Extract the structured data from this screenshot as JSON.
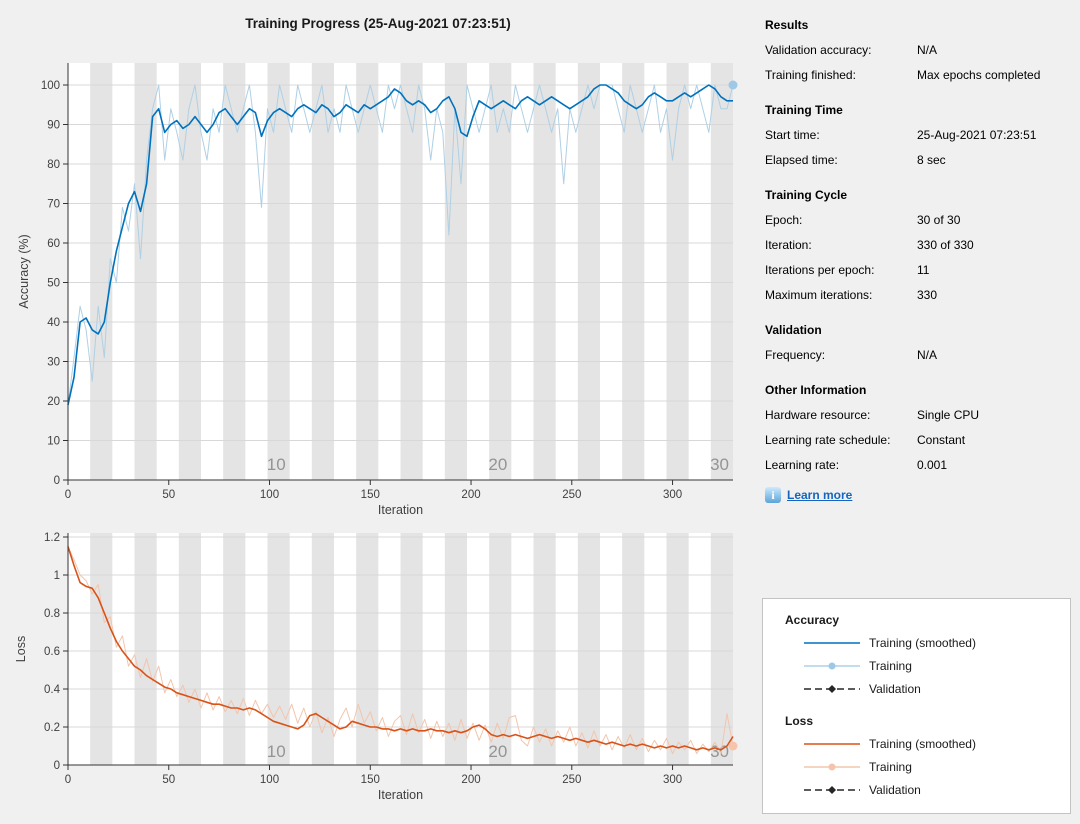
{
  "title": "Training Progress (25-Aug-2021 07:23:51)",
  "colors": {
    "window_bg": "#f0f0f0",
    "plot_bg": "#ffffff",
    "epoch_band": "#e4e4e4",
    "gridline": "#d8d8d8",
    "axis": "#333333",
    "tick_label": "#404040",
    "epoch_label": "#949494",
    "accuracy_smoothed": "#0072bd",
    "accuracy_raw": "#afd0e5",
    "accuracy_marker": "#9ec9e6",
    "loss_smoothed": "#d95319",
    "loss_raw": "#f2c5ad",
    "loss_marker": "#f5c5ab",
    "validation": "#262626",
    "link": "#1565c0"
  },
  "chart_data": [
    {
      "type": "line",
      "name": "accuracy",
      "xlabel": "Iteration",
      "ylabel": "Accuracy (%)",
      "xlim": [
        0,
        330
      ],
      "ylim": [
        0,
        100
      ],
      "xticks": [
        0,
        50,
        100,
        150,
        200,
        250,
        300
      ],
      "yticks": [
        0,
        10,
        20,
        30,
        40,
        50,
        60,
        70,
        80,
        90,
        100
      ],
      "grid": "horizontal",
      "epoch_bands": {
        "epochs": 30,
        "iterations_per_epoch": 11
      },
      "epoch_labels": [
        {
          "label": "10",
          "iteration": 110
        },
        {
          "label": "20",
          "iteration": 220
        },
        {
          "label": "30",
          "iteration": 330
        }
      ],
      "x_step": 3,
      "series": [
        {
          "name": "Training",
          "color_key": "accuracy_raw",
          "width": 1,
          "values": [
            19,
            31,
            44,
            38,
            25,
            44,
            31,
            56,
            50,
            69,
            63,
            75,
            56,
            81,
            94,
            100,
            81,
            94,
            88,
            81,
            94,
            100,
            88,
            81,
            94,
            88,
            100,
            94,
            88,
            94,
            100,
            88,
            69,
            94,
            88,
            100,
            94,
            88,
            100,
            94,
            88,
            94,
            100,
            88,
            94,
            88,
            100,
            94,
            88,
            94,
            100,
            94,
            88,
            100,
            94,
            100,
            94,
            88,
            100,
            94,
            81,
            94,
            88,
            62,
            94,
            75,
            100,
            94,
            88,
            94,
            100,
            88,
            94,
            88,
            100,
            94,
            88,
            94,
            100,
            94,
            88,
            94,
            75,
            94,
            88,
            94,
            100,
            94,
            100,
            100,
            100,
            94,
            88,
            100,
            94,
            88,
            94,
            100,
            88,
            94,
            81,
            94,
            100,
            94,
            100,
            94,
            88,
            100,
            94,
            94,
            100
          ]
        },
        {
          "name": "Training (smoothed)",
          "color_key": "accuracy_smoothed",
          "width": 1.6,
          "values": [
            19,
            26,
            40,
            41,
            38,
            37,
            40,
            50,
            58,
            64,
            70,
            73,
            68,
            75,
            92,
            94,
            88,
            90,
            91,
            89,
            90,
            92,
            90,
            88,
            90,
            93,
            94,
            92,
            90,
            92,
            94,
            93,
            87,
            91,
            93,
            94,
            93,
            92,
            94,
            95,
            94,
            93,
            95,
            94,
            92,
            93,
            95,
            94,
            93,
            95,
            94,
            95,
            96,
            97,
            99,
            98,
            96,
            95,
            96,
            95,
            93,
            94,
            96,
            97,
            94,
            88,
            87,
            92,
            96,
            95,
            94,
            95,
            96,
            95,
            94,
            96,
            97,
            96,
            95,
            96,
            97,
            96,
            95,
            94,
            95,
            96,
            97,
            99,
            100,
            100,
            99,
            98,
            96,
            95,
            94,
            95,
            97,
            98,
            97,
            96,
            96,
            97,
            98,
            97,
            98,
            99,
            100,
            99,
            97,
            96,
            96
          ]
        },
        {
          "name": "Validation",
          "color_key": "validation",
          "width": 1,
          "dashed": true,
          "values": []
        }
      ],
      "end_marker": {
        "x": 330,
        "y": 100,
        "color_key": "accuracy_marker"
      }
    },
    {
      "type": "line",
      "name": "loss",
      "xlabel": "Iteration",
      "ylabel": "Loss",
      "xlim": [
        0,
        330
      ],
      "ylim": [
        0,
        1.2
      ],
      "xticks": [
        0,
        50,
        100,
        150,
        200,
        250,
        300
      ],
      "yticks": [
        0,
        0.2,
        0.4,
        0.6,
        0.8,
        1,
        1.2
      ],
      "grid": "horizontal",
      "epoch_bands": {
        "epochs": 30,
        "iterations_per_epoch": 11
      },
      "epoch_labels": [
        {
          "label": "10",
          "iteration": 110
        },
        {
          "label": "20",
          "iteration": 220
        },
        {
          "label": "30",
          "iteration": 330
        }
      ],
      "x_step": 3,
      "series": [
        {
          "name": "Training",
          "color_key": "loss_raw",
          "width": 1,
          "values": [
            1.15,
            1.08,
            1.0,
            0.97,
            0.9,
            0.95,
            0.75,
            0.78,
            0.62,
            0.68,
            0.52,
            0.58,
            0.46,
            0.56,
            0.44,
            0.52,
            0.38,
            0.45,
            0.36,
            0.42,
            0.33,
            0.4,
            0.3,
            0.38,
            0.29,
            0.36,
            0.28,
            0.34,
            0.27,
            0.35,
            0.26,
            0.34,
            0.27,
            0.32,
            0.25,
            0.31,
            0.24,
            0.32,
            0.22,
            0.3,
            0.2,
            0.28,
            0.17,
            0.25,
            0.15,
            0.24,
            0.3,
            0.2,
            0.32,
            0.22,
            0.28,
            0.18,
            0.25,
            0.15,
            0.23,
            0.26,
            0.16,
            0.27,
            0.17,
            0.24,
            0.14,
            0.23,
            0.15,
            0.22,
            0.13,
            0.24,
            0.14,
            0.22,
            0.13,
            0.21,
            0.12,
            0.22,
            0.14,
            0.25,
            0.26,
            0.13,
            0.1,
            0.2,
            0.12,
            0.19,
            0.1,
            0.18,
            0.12,
            0.2,
            0.1,
            0.17,
            0.09,
            0.18,
            0.1,
            0.16,
            0.08,
            0.15,
            0.09,
            0.16,
            0.08,
            0.14,
            0.07,
            0.13,
            0.08,
            0.14,
            0.06,
            0.12,
            0.08,
            0.13,
            0.06,
            0.11,
            0.07,
            0.12,
            0.06,
            0.27,
            0.1
          ]
        },
        {
          "name": "Training (smoothed)",
          "color_key": "loss_smoothed",
          "width": 1.6,
          "values": [
            1.15,
            1.05,
            0.96,
            0.94,
            0.93,
            0.88,
            0.8,
            0.72,
            0.65,
            0.6,
            0.56,
            0.52,
            0.5,
            0.47,
            0.45,
            0.43,
            0.41,
            0.4,
            0.38,
            0.37,
            0.36,
            0.35,
            0.34,
            0.33,
            0.32,
            0.32,
            0.31,
            0.3,
            0.3,
            0.29,
            0.3,
            0.29,
            0.27,
            0.25,
            0.23,
            0.22,
            0.21,
            0.2,
            0.19,
            0.21,
            0.26,
            0.27,
            0.25,
            0.23,
            0.21,
            0.19,
            0.2,
            0.23,
            0.22,
            0.21,
            0.2,
            0.2,
            0.19,
            0.19,
            0.18,
            0.19,
            0.18,
            0.19,
            0.18,
            0.18,
            0.19,
            0.18,
            0.18,
            0.17,
            0.18,
            0.17,
            0.18,
            0.2,
            0.21,
            0.19,
            0.16,
            0.15,
            0.16,
            0.15,
            0.16,
            0.15,
            0.14,
            0.15,
            0.16,
            0.15,
            0.14,
            0.15,
            0.14,
            0.13,
            0.14,
            0.13,
            0.12,
            0.13,
            0.12,
            0.11,
            0.12,
            0.11,
            0.1,
            0.11,
            0.1,
            0.11,
            0.1,
            0.09,
            0.1,
            0.09,
            0.1,
            0.09,
            0.1,
            0.09,
            0.08,
            0.09,
            0.08,
            0.09,
            0.08,
            0.1,
            0.15
          ]
        },
        {
          "name": "Validation",
          "color_key": "validation",
          "width": 1,
          "dashed": true,
          "values": []
        }
      ],
      "end_marker": {
        "x": 330,
        "y": 0.1,
        "color_key": "loss_marker"
      }
    }
  ],
  "info_panel": {
    "sections": [
      {
        "title": "Results",
        "rows": [
          {
            "label": "Validation accuracy:",
            "value": "N/A"
          },
          {
            "label": "Training finished:",
            "value": "Max epochs completed"
          }
        ]
      },
      {
        "title": "Training Time",
        "rows": [
          {
            "label": "Start time:",
            "value": "25-Aug-2021 07:23:51"
          },
          {
            "label": "Elapsed time:",
            "value": "8 sec"
          }
        ]
      },
      {
        "title": "Training Cycle",
        "rows": [
          {
            "label": "Epoch:",
            "value": "30 of 30"
          },
          {
            "label": "Iteration:",
            "value": "330 of 330"
          },
          {
            "label": "Iterations per epoch:",
            "value": "11"
          },
          {
            "label": "Maximum iterations:",
            "value": "330"
          }
        ]
      },
      {
        "title": "Validation",
        "rows": [
          {
            "label": "Frequency:",
            "value": "N/A"
          }
        ]
      },
      {
        "title": "Other Information",
        "rows": [
          {
            "label": "Hardware resource:",
            "value": "Single CPU"
          },
          {
            "label": "Learning rate schedule:",
            "value": "Constant"
          },
          {
            "label": "Learning rate:",
            "value": "0.001"
          }
        ]
      }
    ],
    "learn_more": {
      "icon": "i",
      "label": "Learn more"
    }
  },
  "legend": {
    "groups": [
      {
        "title": "Accuracy",
        "entries": [
          {
            "label": "Training (smoothed)",
            "style": "solid",
            "color_key": "accuracy_smoothed"
          },
          {
            "label": "Training",
            "style": "solid-marker",
            "color_key": "accuracy_raw",
            "marker_key": "accuracy_marker"
          },
          {
            "label": "Validation",
            "style": "dashed-marker",
            "color_key": "validation",
            "marker_key": "validation"
          }
        ]
      },
      {
        "title": "Loss",
        "entries": [
          {
            "label": "Training (smoothed)",
            "style": "solid",
            "color_key": "loss_smoothed"
          },
          {
            "label": "Training",
            "style": "solid-marker",
            "color_key": "loss_raw",
            "marker_key": "loss_marker"
          },
          {
            "label": "Validation",
            "style": "dashed-marker",
            "color_key": "validation",
            "marker_key": "validation"
          }
        ]
      }
    ]
  }
}
